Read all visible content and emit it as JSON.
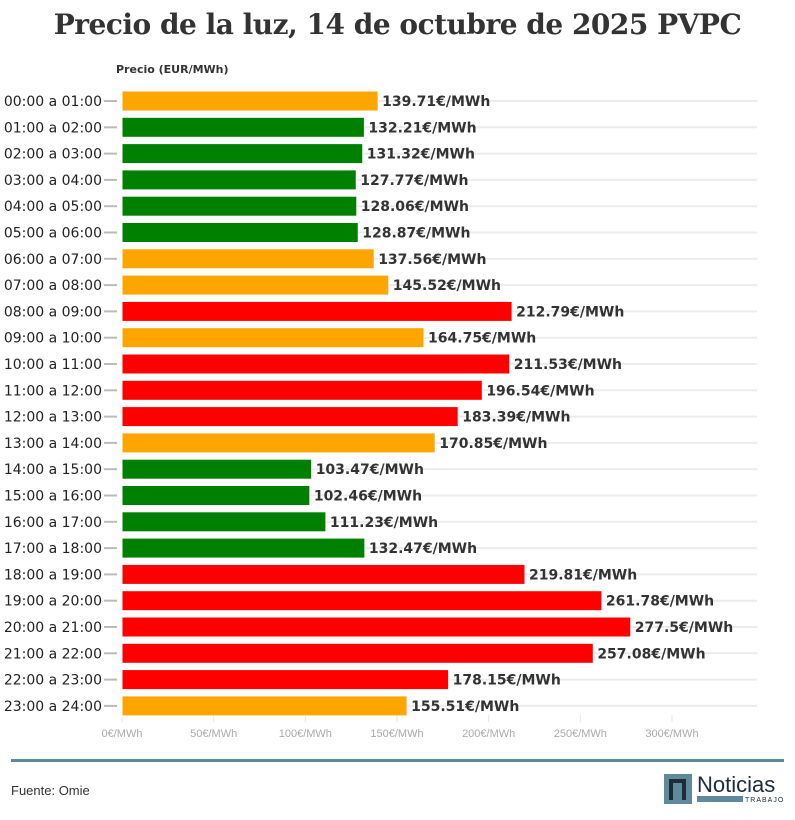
{
  "title": "Precio de la luz, 14 de octubre de 2025 PVPC",
  "source": "Fuente: Omie",
  "logo_text": "Noticias TRABAJO",
  "colors": {
    "orange": "#FFA500",
    "green": "#008000",
    "red": "#FF0000"
  },
  "chart_data": {
    "type": "bar",
    "orientation": "horizontal",
    "ylabel": "Precio (EUR/MWh)",
    "xlim": [
      0,
      300
    ],
    "x_ticks": [
      "0€/MWh",
      "50€/MWh",
      "100€/MWh",
      "150€/MWh",
      "200€/MWh",
      "250€/MWh",
      "300€/MWh"
    ],
    "x_tick_values": [
      0,
      50,
      100,
      150,
      200,
      250,
      300
    ],
    "grid": true,
    "categories": [
      "00:00 a 01:00",
      "01:00 a 02:00",
      "02:00 a 03:00",
      "03:00 a 04:00",
      "04:00 a 05:00",
      "05:00 a 06:00",
      "06:00 a 07:00",
      "07:00 a 08:00",
      "08:00 a 09:00",
      "09:00 a 10:00",
      "10:00 a 11:00",
      "11:00 a 12:00",
      "12:00 a 13:00",
      "13:00 a 14:00",
      "14:00 a 15:00",
      "15:00 a 16:00",
      "16:00 a 17:00",
      "17:00 a 18:00",
      "18:00 a 19:00",
      "19:00 a 20:00",
      "20:00 a 21:00",
      "21:00 a 22:00",
      "22:00 a 23:00",
      "23:00 a 24:00"
    ],
    "values": [
      139.71,
      132.21,
      131.32,
      127.77,
      128.06,
      128.87,
      137.56,
      145.52,
      212.79,
      164.75,
      211.53,
      196.54,
      183.39,
      170.85,
      103.47,
      102.46,
      111.23,
      132.47,
      219.81,
      261.78,
      277.5,
      257.08,
      178.15,
      155.51
    ],
    "labels": [
      "139.71€/MWh",
      "132.21€/MWh",
      "131.32€/MWh",
      "127.77€/MWh",
      "128.06€/MWh",
      "128.87€/MWh",
      "137.56€/MWh",
      "145.52€/MWh",
      "212.79€/MWh",
      "164.75€/MWh",
      "211.53€/MWh",
      "196.54€/MWh",
      "183.39€/MWh",
      "170.85€/MWh",
      "103.47€/MWh",
      "102.46€/MWh",
      "111.23€/MWh",
      "132.47€/MWh",
      "219.81€/MWh",
      "261.78€/MWh",
      "277.5€/MWh",
      "257.08€/MWh",
      "178.15€/MWh",
      "155.51€/MWh"
    ],
    "bar_colors": [
      "orange",
      "green",
      "green",
      "green",
      "green",
      "green",
      "orange",
      "orange",
      "red",
      "orange",
      "red",
      "red",
      "red",
      "orange",
      "green",
      "green",
      "green",
      "green",
      "red",
      "red",
      "red",
      "red",
      "red",
      "orange"
    ]
  }
}
